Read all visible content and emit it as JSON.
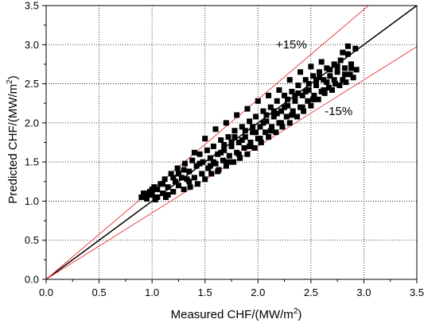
{
  "chart_data": {
    "type": "scatter",
    "title": "",
    "xlabel": "Measured CHF/(MW/m",
    "xlabel_sup": "2",
    "xlabel_close": ")",
    "ylabel": "Predicted CHF/(MW/m",
    "ylabel_sup": "2",
    "ylabel_close": ")",
    "xlim": [
      0,
      3.5
    ],
    "ylim": [
      0,
      3.5
    ],
    "xticks": [
      "0.0",
      "0.5",
      "1.0",
      "1.5",
      "2.0",
      "2.5",
      "3.0",
      "3.5"
    ],
    "yticks": [
      "0.0",
      "0.5",
      "1.0",
      "1.5",
      "2.0",
      "2.5",
      "3.0",
      "3.5"
    ],
    "grid": true,
    "marker_color": "#000000",
    "reference_lines": [
      {
        "label": "",
        "slope": 1.0,
        "color": "#000000"
      },
      {
        "label": "+15%",
        "slope": 1.15,
        "color": "#e8393b"
      },
      {
        "label": "-15%",
        "slope": 0.85,
        "color": "#e8393b"
      }
    ],
    "annotations": [
      {
        "text": "+15%",
        "x": 2.17,
        "y": 2.95
      },
      {
        "text": "-15%",
        "x": 2.63,
        "y": 2.1
      }
    ],
    "points": [
      [
        0.9,
        1.05
      ],
      [
        0.92,
        1.1
      ],
      [
        0.95,
        1.03
      ],
      [
        0.98,
        1.12
      ],
      [
        1.0,
        1.08
      ],
      [
        1.02,
        1.18
      ],
      [
        1.03,
        1.02
      ],
      [
        1.05,
        1.15
      ],
      [
        1.08,
        1.22
      ],
      [
        1.1,
        1.1
      ],
      [
        1.12,
        1.28
      ],
      [
        1.13,
        1.05
      ],
      [
        1.15,
        1.18
      ],
      [
        1.18,
        1.35
      ],
      [
        1.2,
        1.12
      ],
      [
        1.22,
        1.25
      ],
      [
        1.24,
        1.42
      ],
      [
        1.25,
        1.2
      ],
      [
        1.28,
        1.3
      ],
      [
        1.3,
        1.15
      ],
      [
        1.31,
        1.48
      ],
      [
        1.33,
        1.28
      ],
      [
        1.35,
        1.38
      ],
      [
        1.36,
        1.18
      ],
      [
        1.38,
        1.52
      ],
      [
        1.4,
        1.3
      ],
      [
        1.42,
        1.45
      ],
      [
        1.43,
        1.22
      ],
      [
        1.45,
        1.6
      ],
      [
        1.47,
        1.35
      ],
      [
        1.48,
        1.5
      ],
      [
        1.5,
        1.28
      ],
      [
        1.52,
        1.65
      ],
      [
        1.53,
        1.42
      ],
      [
        1.55,
        1.55
      ],
      [
        1.56,
        1.35
      ],
      [
        1.58,
        1.7
      ],
      [
        1.6,
        1.48
      ],
      [
        1.62,
        1.6
      ],
      [
        1.63,
        1.4
      ],
      [
        1.65,
        1.78
      ],
      [
        1.67,
        1.52
      ],
      [
        1.68,
        1.65
      ],
      [
        1.7,
        1.45
      ],
      [
        1.72,
        1.82
      ],
      [
        1.73,
        1.58
      ],
      [
        1.75,
        1.7
      ],
      [
        1.77,
        1.5
      ],
      [
        1.78,
        1.9
      ],
      [
        1.8,
        1.62
      ],
      [
        1.82,
        1.75
      ],
      [
        1.83,
        1.55
      ],
      [
        1.85,
        1.95
      ],
      [
        1.87,
        1.68
      ],
      [
        1.88,
        1.82
      ],
      [
        1.9,
        1.6
      ],
      [
        1.92,
        2.02
      ],
      [
        1.93,
        1.75
      ],
      [
        1.95,
        1.88
      ],
      [
        1.97,
        1.68
      ],
      [
        1.98,
        2.08
      ],
      [
        2.0,
        1.8
      ],
      [
        2.02,
        1.95
      ],
      [
        2.03,
        1.75
      ],
      [
        2.05,
        2.15
      ],
      [
        2.07,
        1.88
      ],
      [
        2.08,
        2.02
      ],
      [
        2.1,
        1.82
      ],
      [
        2.12,
        2.2
      ],
      [
        2.13,
        1.95
      ],
      [
        2.15,
        2.08
      ],
      [
        2.17,
        1.88
      ],
      [
        2.18,
        2.28
      ],
      [
        2.2,
        2.0
      ],
      [
        2.22,
        2.15
      ],
      [
        2.23,
        1.95
      ],
      [
        2.25,
        2.35
      ],
      [
        2.27,
        2.08
      ],
      [
        2.28,
        2.22
      ],
      [
        2.3,
        2.0
      ],
      [
        2.32,
        2.4
      ],
      [
        2.33,
        2.15
      ],
      [
        2.35,
        2.28
      ],
      [
        2.37,
        2.08
      ],
      [
        2.38,
        2.48
      ],
      [
        2.4,
        2.2
      ],
      [
        2.42,
        2.35
      ],
      [
        2.43,
        2.15
      ],
      [
        2.45,
        2.55
      ],
      [
        2.47,
        2.28
      ],
      [
        2.48,
        2.42
      ],
      [
        2.5,
        2.22
      ],
      [
        2.52,
        2.6
      ],
      [
        2.53,
        2.35
      ],
      [
        2.55,
        2.48
      ],
      [
        2.57,
        2.3
      ],
      [
        2.58,
        2.65
      ],
      [
        2.6,
        2.4
      ],
      [
        2.62,
        2.55
      ],
      [
        2.63,
        2.38
      ],
      [
        2.65,
        2.7
      ],
      [
        2.67,
        2.45
      ],
      [
        2.68,
        2.6
      ],
      [
        2.7,
        2.42
      ],
      [
        2.72,
        2.75
      ],
      [
        2.73,
        2.5
      ],
      [
        2.75,
        2.65
      ],
      [
        2.77,
        2.48
      ],
      [
        2.78,
        2.8
      ],
      [
        2.8,
        2.55
      ],
      [
        2.82,
        2.7
      ],
      [
        2.83,
        2.52
      ],
      [
        2.85,
        2.88
      ],
      [
        2.87,
        2.62
      ],
      [
        2.88,
        2.75
      ],
      [
        2.9,
        2.58
      ],
      [
        2.92,
        2.95
      ],
      [
        2.93,
        2.68
      ],
      [
        2.85,
        2.98
      ],
      [
        2.8,
        2.9
      ],
      [
        1.15,
        1.08
      ],
      [
        1.25,
        1.35
      ],
      [
        1.35,
        1.25
      ],
      [
        1.45,
        1.48
      ],
      [
        1.55,
        1.45
      ],
      [
        1.65,
        1.62
      ],
      [
        1.75,
        1.75
      ],
      [
        1.85,
        1.78
      ],
      [
        1.95,
        1.95
      ],
      [
        2.05,
        2.0
      ],
      [
        2.15,
        2.15
      ],
      [
        2.25,
        2.2
      ],
      [
        2.35,
        2.35
      ],
      [
        2.45,
        2.4
      ],
      [
        2.55,
        2.55
      ],
      [
        2.65,
        2.52
      ],
      [
        2.75,
        2.72
      ],
      [
        1.6,
        1.92
      ],
      [
        1.7,
        2.0
      ],
      [
        1.8,
        2.1
      ],
      [
        1.9,
        2.18
      ],
      [
        2.0,
        2.28
      ],
      [
        2.1,
        2.35
      ],
      [
        2.2,
        2.42
      ],
      [
        2.3,
        2.55
      ],
      [
        2.4,
        2.65
      ],
      [
        2.5,
        2.72
      ],
      [
        2.6,
        2.78
      ],
      [
        1.5,
        1.8
      ],
      [
        1.4,
        1.62
      ],
      [
        1.3,
        1.4
      ],
      [
        1.2,
        1.3
      ],
      [
        1.1,
        1.22
      ],
      [
        1.0,
        1.15
      ],
      [
        0.95,
        1.1
      ],
      [
        1.05,
        1.05
      ],
      [
        1.62,
        1.38
      ],
      [
        1.72,
        1.5
      ],
      [
        1.82,
        1.6
      ],
      [
        1.92,
        1.7
      ],
      [
        2.02,
        1.8
      ],
      [
        2.12,
        1.9
      ],
      [
        2.22,
        2.0
      ],
      [
        2.32,
        2.1
      ],
      [
        2.42,
        2.2
      ],
      [
        2.52,
        2.3
      ],
      [
        2.62,
        2.42
      ],
      [
        2.72,
        2.55
      ],
      [
        2.82,
        2.62
      ],
      [
        2.88,
        2.7
      ],
      [
        1.58,
        1.5
      ],
      [
        1.68,
        1.72
      ],
      [
        1.78,
        1.82
      ],
      [
        1.88,
        1.9
      ],
      [
        1.98,
        1.88
      ],
      [
        2.08,
        2.1
      ],
      [
        2.18,
        2.12
      ],
      [
        2.28,
        2.3
      ],
      [
        2.38,
        2.38
      ],
      [
        2.48,
        2.5
      ],
      [
        2.58,
        2.58
      ],
      [
        2.68,
        2.68
      ]
    ]
  }
}
